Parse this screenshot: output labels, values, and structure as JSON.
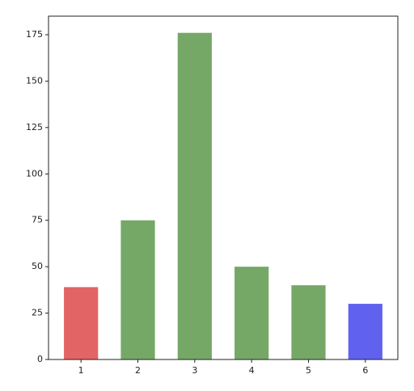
{
  "chart_data": {
    "type": "bar",
    "categories": [
      "1",
      "2",
      "3",
      "4",
      "5",
      "6"
    ],
    "values": [
      39,
      75,
      176,
      50,
      40,
      30
    ],
    "colors": [
      "#e36464",
      "#75a866",
      "#75a866",
      "#75a866",
      "#75a866",
      "#6161f0"
    ],
    "ylim": [
      0,
      185
    ],
    "yticks": [
      0,
      25,
      50,
      75,
      100,
      125,
      150,
      175
    ],
    "grid": false
  }
}
